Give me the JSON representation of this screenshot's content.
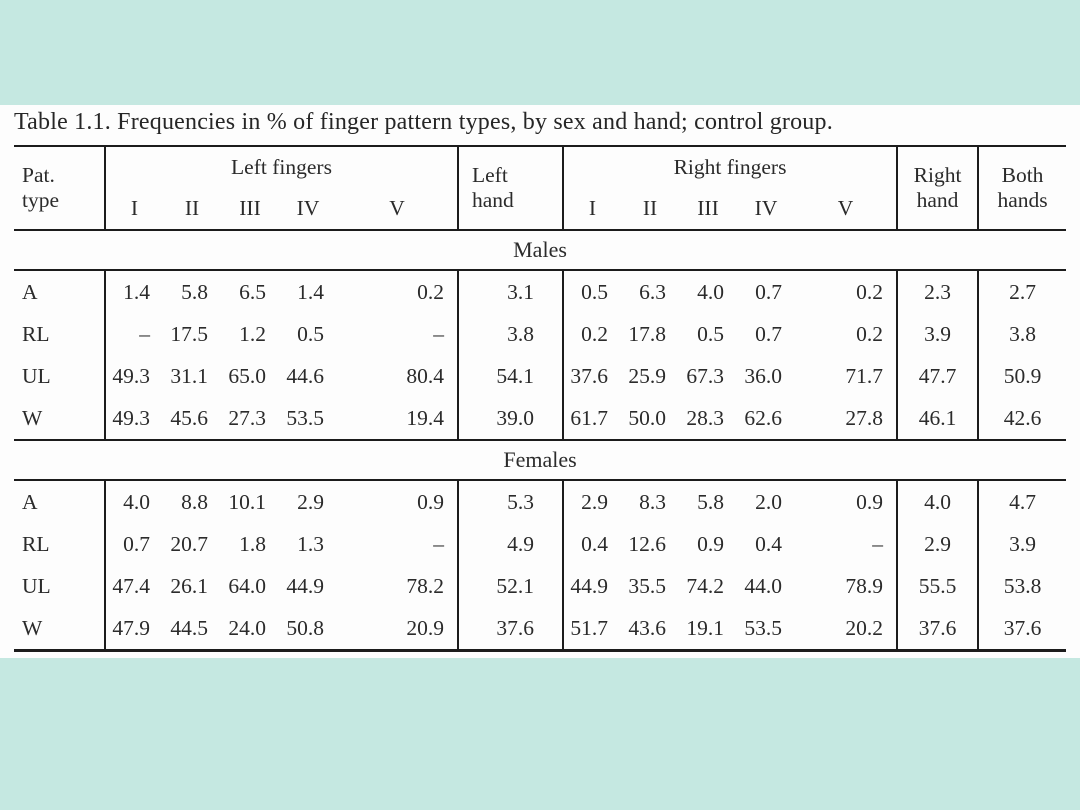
{
  "page": {
    "bg_color": "#c5e8e1",
    "panel_color": "#fdfdfd",
    "rule_color": "#1c1c1c",
    "text_color": "#2b2b2b"
  },
  "caption": "Table 1.1. Frequencies in % of finger pattern types, by sex and hand; control group.",
  "table": {
    "header": {
      "pat_line1": "Pat.",
      "pat_line2": "type",
      "left_fingers": "Left fingers",
      "left_hand_line1": "Left",
      "left_hand_line2": "hand",
      "right_fingers": "Right fingers",
      "right_hand_line1": "Right",
      "right_hand_line2": "hand",
      "both_hands_line1": "Both",
      "both_hands_line2": "hands",
      "finger_cols": [
        "I",
        "II",
        "III",
        "IV",
        "V"
      ]
    },
    "sections": [
      {
        "label": "Males",
        "rows": [
          {
            "type": "A",
            "left": [
              "1.4",
              "5.8",
              "6.5",
              "1.4",
              "0.2"
            ],
            "left_hand": "3.1",
            "right": [
              "0.5",
              "6.3",
              "4.0",
              "0.7",
              "0.2"
            ],
            "right_hand": "2.3",
            "both_hands": "2.7"
          },
          {
            "type": "RL",
            "left": [
              "–",
              "17.5",
              "1.2",
              "0.5",
              "–"
            ],
            "left_hand": "3.8",
            "right": [
              "0.2",
              "17.8",
              "0.5",
              "0.7",
              "0.2"
            ],
            "right_hand": "3.9",
            "both_hands": "3.8"
          },
          {
            "type": "UL",
            "left": [
              "49.3",
              "31.1",
              "65.0",
              "44.6",
              "80.4"
            ],
            "left_hand": "54.1",
            "right": [
              "37.6",
              "25.9",
              "67.3",
              "36.0",
              "71.7"
            ],
            "right_hand": "47.7",
            "both_hands": "50.9"
          },
          {
            "type": "W",
            "left": [
              "49.3",
              "45.6",
              "27.3",
              "53.5",
              "19.4"
            ],
            "left_hand": "39.0",
            "right": [
              "61.7",
              "50.0",
              "28.3",
              "62.6",
              "27.8"
            ],
            "right_hand": "46.1",
            "both_hands": "42.6"
          }
        ]
      },
      {
        "label": "Females",
        "rows": [
          {
            "type": "A",
            "left": [
              "4.0",
              "8.8",
              "10.1",
              "2.9",
              "0.9"
            ],
            "left_hand": "5.3",
            "right": [
              "2.9",
              "8.3",
              "5.8",
              "2.0",
              "0.9"
            ],
            "right_hand": "4.0",
            "both_hands": "4.7"
          },
          {
            "type": "RL",
            "left": [
              "0.7",
              "20.7",
              "1.8",
              "1.3",
              "–"
            ],
            "left_hand": "4.9",
            "right": [
              "0.4",
              "12.6",
              "0.9",
              "0.4",
              "–"
            ],
            "right_hand": "2.9",
            "both_hands": "3.9"
          },
          {
            "type": "UL",
            "left": [
              "47.4",
              "26.1",
              "64.0",
              "44.9",
              "78.2"
            ],
            "left_hand": "52.1",
            "right": [
              "44.9",
              "35.5",
              "74.2",
              "44.0",
              "78.9"
            ],
            "right_hand": "55.5",
            "both_hands": "53.8"
          },
          {
            "type": "W",
            "left": [
              "47.9",
              "44.5",
              "24.0",
              "50.8",
              "20.9"
            ],
            "left_hand": "37.6",
            "right": [
              "51.7",
              "43.6",
              "19.1",
              "53.5",
              "20.2"
            ],
            "right_hand": "37.6",
            "both_hands": "37.6"
          }
        ]
      }
    ]
  }
}
